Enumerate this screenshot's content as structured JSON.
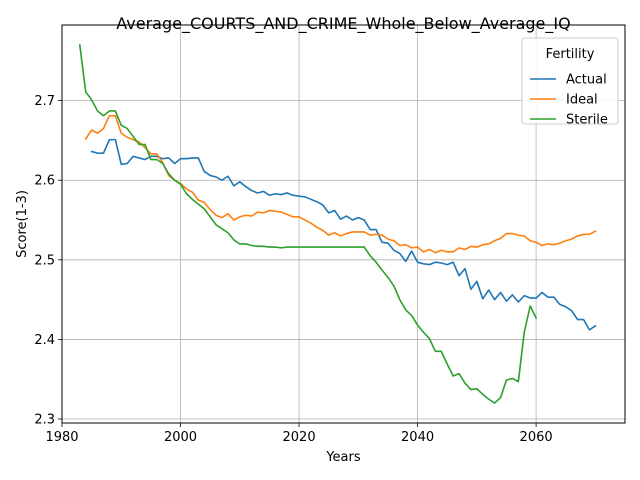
{
  "chart_data": {
    "type": "line",
    "title": "Average_COURTS_AND_CRIME_Whole_Below_Average_IQ",
    "xlabel": "Years",
    "ylabel": "Score(1-3)",
    "xlim": [
      1980,
      2075
    ],
    "ylim": [
      2.295,
      2.795
    ],
    "xticks": [
      1980,
      2000,
      2020,
      2040,
      2060
    ],
    "yticks": [
      2.3,
      2.4,
      2.5,
      2.6,
      2.7
    ],
    "grid": true,
    "legend": {
      "title": "Fertility",
      "position": "top-right"
    },
    "series": [
      {
        "name": "Actual",
        "color": "#1f77b4",
        "x": [
          1985,
          1986,
          1987,
          1988,
          1989,
          1990,
          1991,
          1992,
          1993,
          1994,
          1995,
          1996,
          1997,
          1998,
          1999,
          2000,
          2001,
          2002,
          2003,
          2004,
          2005,
          2006,
          2007,
          2008,
          2009,
          2010,
          2011,
          2012,
          2013,
          2014,
          2015,
          2016,
          2017,
          2018,
          2019,
          2020,
          2021,
          2022,
          2023,
          2024,
          2025,
          2026,
          2027,
          2028,
          2029,
          2030,
          2031,
          2032,
          2033,
          2034,
          2035,
          2036,
          2037,
          2038,
          2039,
          2040,
          2041,
          2042,
          2043,
          2044,
          2045,
          2046,
          2047,
          2048,
          2049,
          2050,
          2051,
          2052,
          2053,
          2054,
          2055,
          2056,
          2057,
          2058,
          2059,
          2060,
          2061,
          2062,
          2063,
          2064,
          2065,
          2066,
          2067,
          2068,
          2069,
          2070
        ],
        "values": [
          2.636,
          2.634,
          2.634,
          2.651,
          2.651,
          2.62,
          2.621,
          2.63,
          2.628,
          2.626,
          2.63,
          2.63,
          2.627,
          2.628,
          2.621,
          2.627,
          2.627,
          2.628,
          2.628,
          2.611,
          2.606,
          2.604,
          2.6,
          2.605,
          2.593,
          2.598,
          2.592,
          2.587,
          2.584,
          2.586,
          2.581,
          2.583,
          2.582,
          2.584,
          2.581,
          2.58,
          2.579,
          2.576,
          2.573,
          2.569,
          2.559,
          2.562,
          2.551,
          2.555,
          2.55,
          2.553,
          2.55,
          2.538,
          2.538,
          2.522,
          2.521,
          2.512,
          2.508,
          2.498,
          2.511,
          2.497,
          2.495,
          2.494,
          2.497,
          2.496,
          2.494,
          2.497,
          2.48,
          2.489,
          2.463,
          2.473,
          2.451,
          2.462,
          2.45,
          2.459,
          2.448,
          2.456,
          2.447,
          2.455,
          2.452,
          2.452,
          2.459,
          2.453,
          2.453,
          2.444,
          2.441,
          2.436,
          2.425,
          2.425,
          2.412,
          2.417
        ]
      },
      {
        "name": "Ideal",
        "color": "#ff7f0e",
        "x": [
          1984,
          1985,
          1986,
          1987,
          1988,
          1989,
          1990,
          1991,
          1992,
          1993,
          1994,
          1995,
          1996,
          1997,
          1998,
          1999,
          2000,
          2001,
          2002,
          2003,
          2004,
          2005,
          2006,
          2007,
          2008,
          2009,
          2010,
          2011,
          2012,
          2013,
          2014,
          2015,
          2016,
          2017,
          2018,
          2019,
          2020,
          2021,
          2022,
          2023,
          2024,
          2025,
          2026,
          2027,
          2028,
          2029,
          2030,
          2031,
          2032,
          2033,
          2034,
          2035,
          2036,
          2037,
          2038,
          2039,
          2040,
          2041,
          2042,
          2043,
          2044,
          2045,
          2046,
          2047,
          2048,
          2049,
          2050,
          2051,
          2052,
          2053,
          2054,
          2055,
          2056,
          2057,
          2058,
          2059,
          2060,
          2061,
          2062,
          2063,
          2064,
          2065,
          2066,
          2067,
          2068,
          2069,
          2070
        ],
        "values": [
          2.652,
          2.663,
          2.659,
          2.665,
          2.681,
          2.681,
          2.659,
          2.654,
          2.651,
          2.648,
          2.641,
          2.633,
          2.633,
          2.622,
          2.606,
          2.6,
          2.596,
          2.589,
          2.585,
          2.575,
          2.572,
          2.563,
          2.556,
          2.553,
          2.558,
          2.55,
          2.554,
          2.556,
          2.555,
          2.56,
          2.559,
          2.562,
          2.561,
          2.56,
          2.557,
          2.554,
          2.554,
          2.55,
          2.546,
          2.541,
          2.537,
          2.531,
          2.534,
          2.53,
          2.533,
          2.535,
          2.535,
          2.535,
          2.531,
          2.532,
          2.531,
          2.526,
          2.524,
          2.518,
          2.519,
          2.515,
          2.516,
          2.51,
          2.513,
          2.509,
          2.512,
          2.51,
          2.51,
          2.515,
          2.513,
          2.517,
          2.516,
          2.519,
          2.52,
          2.524,
          2.527,
          2.533,
          2.533,
          2.531,
          2.53,
          2.524,
          2.522,
          2.518,
          2.52,
          2.519,
          2.521,
          2.524,
          2.526,
          2.53,
          2.532,
          2.532,
          2.536
        ]
      },
      {
        "name": "Sterile",
        "color": "#2ca02c",
        "x": [
          1983,
          1984,
          1985,
          1986,
          1987,
          1988,
          1989,
          1990,
          1991,
          1992,
          1993,
          1994,
          1995,
          1996,
          1997,
          1998,
          1999,
          2000,
          2001,
          2002,
          2003,
          2004,
          2005,
          2006,
          2007,
          2008,
          2009,
          2010,
          2011,
          2012,
          2013,
          2014,
          2015,
          2016,
          2017,
          2018,
          2019,
          2020,
          2021,
          2022,
          2023,
          2024,
          2025,
          2026,
          2027,
          2028,
          2029,
          2030,
          2031,
          2032,
          2033,
          2034,
          2035,
          2036,
          2037,
          2038,
          2039,
          2040,
          2041,
          2042,
          2043,
          2044,
          2045,
          2046,
          2047,
          2048,
          2049,
          2050,
          2051,
          2052,
          2053,
          2054,
          2055,
          2056,
          2057,
          2058,
          2059,
          2060
        ],
        "values": [
          2.77,
          2.711,
          2.701,
          2.687,
          2.681,
          2.687,
          2.687,
          2.669,
          2.665,
          2.655,
          2.645,
          2.645,
          2.626,
          2.626,
          2.621,
          2.608,
          2.6,
          2.595,
          2.583,
          2.576,
          2.57,
          2.564,
          2.554,
          2.544,
          2.539,
          2.534,
          2.525,
          2.52,
          2.52,
          2.518,
          2.517,
          2.517,
          2.516,
          2.516,
          2.515,
          2.516,
          2.516,
          2.516,
          2.516,
          2.516,
          2.516,
          2.516,
          2.516,
          2.516,
          2.516,
          2.516,
          2.516,
          2.516,
          2.516,
          2.505,
          2.497,
          2.487,
          2.478,
          2.467,
          2.45,
          2.437,
          2.43,
          2.418,
          2.409,
          2.401,
          2.385,
          2.385,
          2.369,
          2.354,
          2.357,
          2.345,
          2.337,
          2.338,
          2.331,
          2.325,
          2.32,
          2.327,
          2.349,
          2.351,
          2.347,
          2.409,
          2.442,
          2.427
        ]
      }
    ]
  }
}
